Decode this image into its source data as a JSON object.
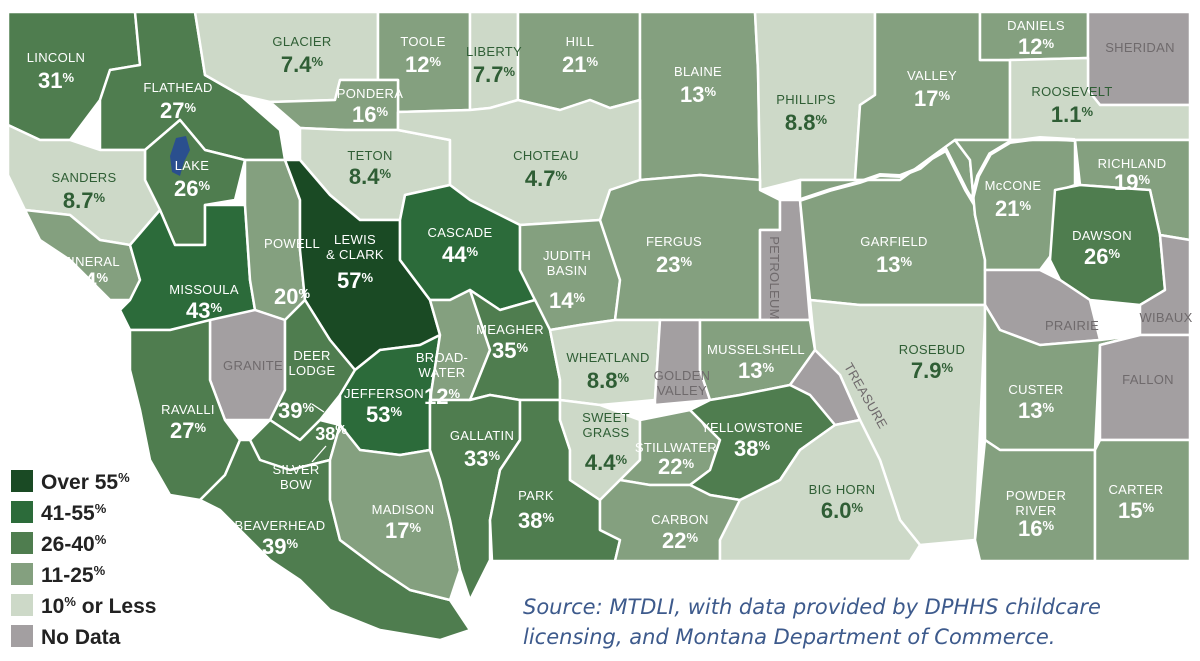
{
  "colors": {
    "over55": "#1a4a24",
    "r41_55": "#2c6b3a",
    "r26_40": "#4f7d4f",
    "r11_25": "#84a07f",
    "le10": "#cdd9c8",
    "nodata": "#a39fa1",
    "lake": "#2a4f8e",
    "river": "#ffffff"
  },
  "legend": [
    {
      "label": "Over 55",
      "suffix": "%",
      "color_key": "over55"
    },
    {
      "label": "41-55",
      "suffix": "%",
      "color_key": "r41_55"
    },
    {
      "label": "26-40",
      "suffix": "%",
      "color_key": "r26_40"
    },
    {
      "label": "11-25",
      "suffix": "%",
      "color_key": "r11_25"
    },
    {
      "label": "10",
      "suffix": "% or Less",
      "color_key": "le10"
    },
    {
      "label": "No Data",
      "suffix": "",
      "color_key": "nodata"
    }
  ],
  "source_lines": [
    "Source: MTDLI, with data provided by DPHHS childcare",
    "licensing, and Montana Department of Commerce."
  ],
  "counties": [
    {
      "id": "lincoln",
      "name": [
        "LINCOLN"
      ],
      "value": "31",
      "cat": "r26_40"
    },
    {
      "id": "flathead",
      "name": [
        "FLATHEAD"
      ],
      "value": "27",
      "cat": "r26_40"
    },
    {
      "id": "glacier",
      "name": [
        "GLACIER"
      ],
      "value": "7.4",
      "cat": "le10"
    },
    {
      "id": "toole",
      "name": [
        "TOOLE"
      ],
      "value": "12",
      "cat": "r11_25"
    },
    {
      "id": "liberty",
      "name": [
        "LIBERTY"
      ],
      "value": "7.7",
      "cat": "le10"
    },
    {
      "id": "hill",
      "name": [
        "HILL"
      ],
      "value": "21",
      "cat": "r11_25"
    },
    {
      "id": "blaine",
      "name": [
        "BLAINE"
      ],
      "value": "13",
      "cat": "r11_25"
    },
    {
      "id": "phillips",
      "name": [
        "PHILLIPS"
      ],
      "value": "8.8",
      "cat": "le10"
    },
    {
      "id": "valley",
      "name": [
        "VALLEY"
      ],
      "value": "17",
      "cat": "r11_25"
    },
    {
      "id": "daniels",
      "name": [
        "DANIELS"
      ],
      "value": "12",
      "cat": "r11_25"
    },
    {
      "id": "sheridan",
      "name": [
        "SHERIDAN"
      ],
      "value": "",
      "cat": "nodata"
    },
    {
      "id": "roosevelt",
      "name": [
        "ROOSEVELT"
      ],
      "value": "1.1",
      "cat": "le10"
    },
    {
      "id": "pondera",
      "name": [
        "PONDERA"
      ],
      "value": "16",
      "cat": "r11_25"
    },
    {
      "id": "teton",
      "name": [
        "TETON"
      ],
      "value": "8.4",
      "cat": "le10"
    },
    {
      "id": "choteau",
      "name": [
        "CHOTEAU"
      ],
      "value": "4.7",
      "cat": "le10"
    },
    {
      "id": "lake",
      "name": [
        "LAKE"
      ],
      "value": "26",
      "cat": "r26_40"
    },
    {
      "id": "sanders",
      "name": [
        "SANDERS"
      ],
      "value": "8.7",
      "cat": "le10"
    },
    {
      "id": "mineral",
      "name": [
        "MINERAL"
      ],
      "value": "14",
      "cat": "r11_25"
    },
    {
      "id": "missoula",
      "name": [
        "MISSOULA"
      ],
      "value": "43",
      "cat": "r41_55"
    },
    {
      "id": "powell",
      "name": [
        "POWELL"
      ],
      "value": "20",
      "cat": "r11_25"
    },
    {
      "id": "lewisclark",
      "name": [
        "LEWIS",
        "& CLARK"
      ],
      "value": "57",
      "cat": "over55"
    },
    {
      "id": "cascade",
      "name": [
        "CASCADE"
      ],
      "value": "44",
      "cat": "r41_55"
    },
    {
      "id": "judithbasin",
      "name": [
        "JUDITH",
        "BASIN"
      ],
      "value": "14",
      "cat": "r11_25"
    },
    {
      "id": "fergus",
      "name": [
        "FERGUS"
      ],
      "value": "23",
      "cat": "r11_25"
    },
    {
      "id": "petroleum",
      "name": [
        "PETROLEUM"
      ],
      "value": "",
      "cat": "nodata"
    },
    {
      "id": "garfield",
      "name": [
        "GARFIELD"
      ],
      "value": "13",
      "cat": "r11_25"
    },
    {
      "id": "mccone",
      "name": [
        "McCONE"
      ],
      "value": "21",
      "cat": "r11_25"
    },
    {
      "id": "richland",
      "name": [
        "RICHLAND"
      ],
      "value": "19",
      "cat": "r11_25"
    },
    {
      "id": "dawson",
      "name": [
        "DAWSON"
      ],
      "value": "26",
      "cat": "r26_40"
    },
    {
      "id": "prairie",
      "name": [
        "PRAIRIE"
      ],
      "value": "",
      "cat": "nodata"
    },
    {
      "id": "wibaux",
      "name": [
        "WIBAUX"
      ],
      "value": "",
      "cat": "nodata"
    },
    {
      "id": "granite",
      "name": [
        "GRANITE"
      ],
      "value": "",
      "cat": "nodata"
    },
    {
      "id": "deerlodge",
      "name": [
        "DEER",
        "LODGE"
      ],
      "value": "39",
      "cat": "r26_40"
    },
    {
      "id": "ravalli",
      "name": [
        "RAVALLI"
      ],
      "value": "27",
      "cat": "r26_40"
    },
    {
      "id": "jefferson",
      "name": [
        "JEFFERSON"
      ],
      "value": "53",
      "cat": "r41_55"
    },
    {
      "id": "broadwater",
      "name": [
        "BROAD-",
        "WATER"
      ],
      "value": "12",
      "cat": "r11_25"
    },
    {
      "id": "meagher",
      "name": [
        "MEAGHER"
      ],
      "value": "35",
      "cat": "r26_40"
    },
    {
      "id": "wheatland",
      "name": [
        "WHEATLAND"
      ],
      "value": "8.8",
      "cat": "le10"
    },
    {
      "id": "goldenvalley",
      "name": [
        "GOLDEN",
        "VALLEY"
      ],
      "value": "",
      "cat": "nodata"
    },
    {
      "id": "musselshell",
      "name": [
        "MUSSELSHELL"
      ],
      "value": "13",
      "cat": "r11_25"
    },
    {
      "id": "rosebud",
      "name": [
        "ROSEBUD"
      ],
      "value": "7.9",
      "cat": "le10"
    },
    {
      "id": "treasure",
      "name": [
        "TREASURE"
      ],
      "value": "",
      "cat": "nodata"
    },
    {
      "id": "custer",
      "name": [
        "CUSTER"
      ],
      "value": "13",
      "cat": "r11_25"
    },
    {
      "id": "fallon",
      "name": [
        "FALLON"
      ],
      "value": "",
      "cat": "nodata"
    },
    {
      "id": "silverbow",
      "name": [
        "SILVER",
        "BOW"
      ],
      "value": "38",
      "cat": "r26_40"
    },
    {
      "id": "beaverhead",
      "name": [
        "BEAVERHEAD"
      ],
      "value": "39",
      "cat": "r26_40"
    },
    {
      "id": "madison",
      "name": [
        "MADISON"
      ],
      "value": "17",
      "cat": "r11_25"
    },
    {
      "id": "gallatin",
      "name": [
        "GALLATIN"
      ],
      "value": "33",
      "cat": "r26_40"
    },
    {
      "id": "park",
      "name": [
        "PARK"
      ],
      "value": "38",
      "cat": "r26_40"
    },
    {
      "id": "sweetgrass",
      "name": [
        "SWEET",
        "GRASS"
      ],
      "value": "4.4",
      "cat": "le10"
    },
    {
      "id": "stillwater",
      "name": [
        "STILLWATER"
      ],
      "value": "22",
      "cat": "r11_25"
    },
    {
      "id": "yellowstone",
      "name": [
        "YELLOWSTONE"
      ],
      "value": "38",
      "cat": "r26_40"
    },
    {
      "id": "carbon",
      "name": [
        "CARBON"
      ],
      "value": "22",
      "cat": "r11_25"
    },
    {
      "id": "bighorn",
      "name": [
        "BIG HORN"
      ],
      "value": "6.0",
      "cat": "le10"
    },
    {
      "id": "powderriver",
      "name": [
        "POWDER",
        "RIVER"
      ],
      "value": "16",
      "cat": "r11_25"
    },
    {
      "id": "carter",
      "name": [
        "CARTER"
      ],
      "value": "15",
      "cat": "r11_25"
    }
  ]
}
